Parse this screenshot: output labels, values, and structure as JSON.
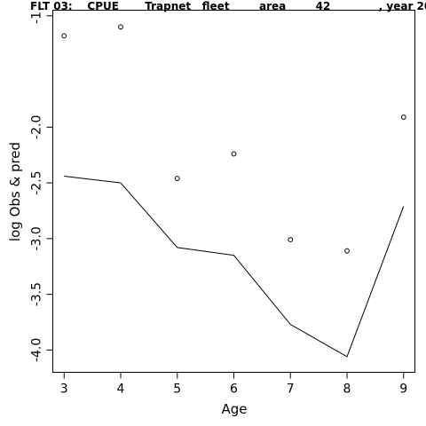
{
  "chart_data": {
    "type": "line",
    "title": "FLT 03:    CPUE       Trapnet   fleet        area        42             , year 20",
    "xlabel": "Age",
    "ylabel": "log Obs & pred",
    "xlim": [
      2.8,
      9.2
    ],
    "ylim": [
      -4.2,
      -0.95
    ],
    "x_ticks": [
      3,
      4,
      5,
      6,
      7,
      8,
      9
    ],
    "x_tick_labels": [
      "3",
      "4",
      "5",
      "6",
      "7",
      "8",
      "9"
    ],
    "y_ticks": [
      -1.0,
      -2.0,
      -2.5,
      -3.0,
      -3.5,
      -4.0
    ],
    "y_tick_labels": [
      "-1.",
      "-2.0",
      "-2.5",
      "-3.0",
      "-3.5",
      "-4.0"
    ],
    "grid": false,
    "series": [
      {
        "kind": "points",
        "x": [
          3,
          4,
          5,
          6,
          7,
          8,
          9
        ],
        "y": [
          -1.18,
          -1.1,
          -2.46,
          -2.24,
          -3.01,
          -3.11,
          -1.91
        ]
      },
      {
        "kind": "line",
        "x": [
          3,
          4,
          5,
          6,
          7,
          8,
          9
        ],
        "y": [
          -2.44,
          -2.5,
          -3.08,
          -3.15,
          -3.77,
          -4.06,
          -2.71
        ]
      }
    ]
  }
}
